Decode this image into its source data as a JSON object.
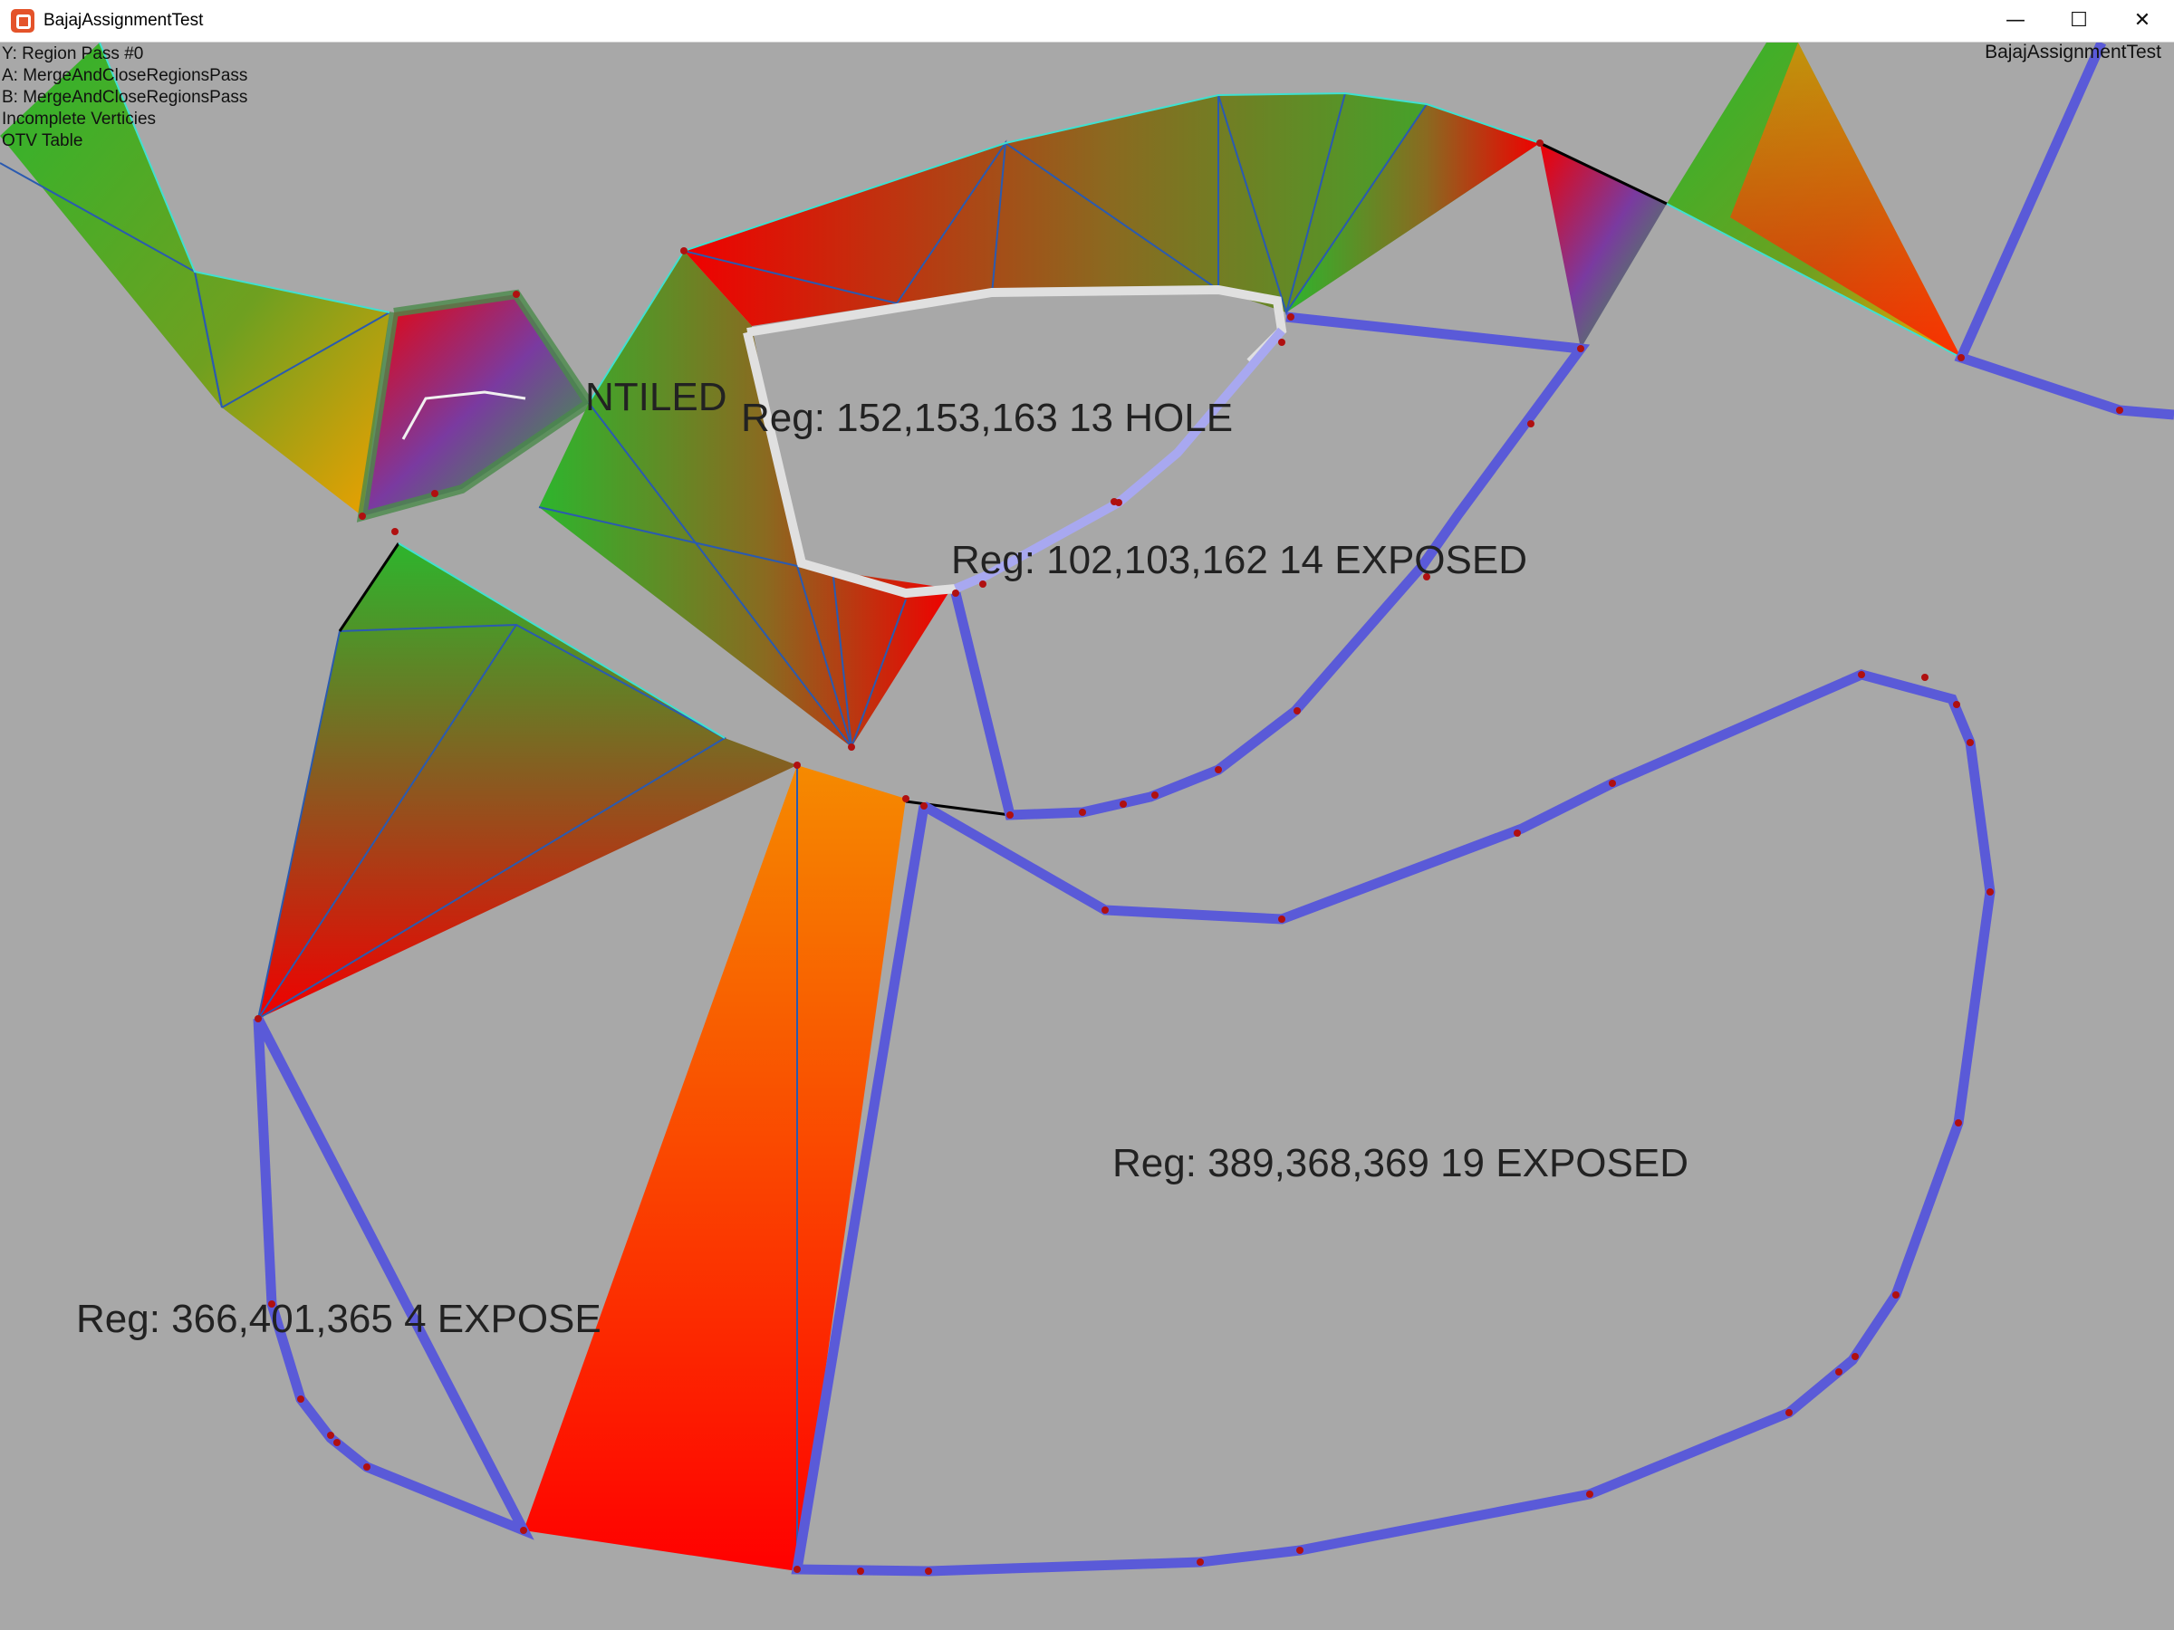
{
  "window": {
    "title": "BajajAssignmentTest",
    "icon": "monogame-app-icon",
    "controls": [
      "minimize-icon",
      "maximize-icon",
      "close-icon"
    ],
    "control_glyphs": {
      "minimize": "—",
      "maximize": "☐",
      "close": "✕"
    }
  },
  "overlay": {
    "top_right_title": "BajajAssignmentTest",
    "debug_lines": [
      "Y: Region Pass #0",
      "A: MergeAndCloseRegionsPass",
      "B: MergeAndCloseRegionsPass",
      "Incomplete Verticies",
      "OTV Table"
    ]
  },
  "regions": {
    "hidden_label_suffix": "NTILED",
    "labels": [
      "Reg: 152,153,163 13 HOLE",
      "Reg: 102,103,162 14 EXPOSED",
      "Reg: 389,368,369 19 EXPOSED",
      "Reg: 366,401,365 4 EXPOSE"
    ]
  },
  "colors": {
    "background": "#a8a8a8",
    "outline_blue": "#5a5ad8",
    "hole_outline": "#e0e0e0",
    "hole_outline_blue": "#a8a8f0",
    "mesh_edge": "#2a5ab0",
    "cyan_edge": "#40e0d0",
    "vertex": "#b01010",
    "green": "#2db52d",
    "red": "#f00000",
    "orange": "#f58a00"
  }
}
